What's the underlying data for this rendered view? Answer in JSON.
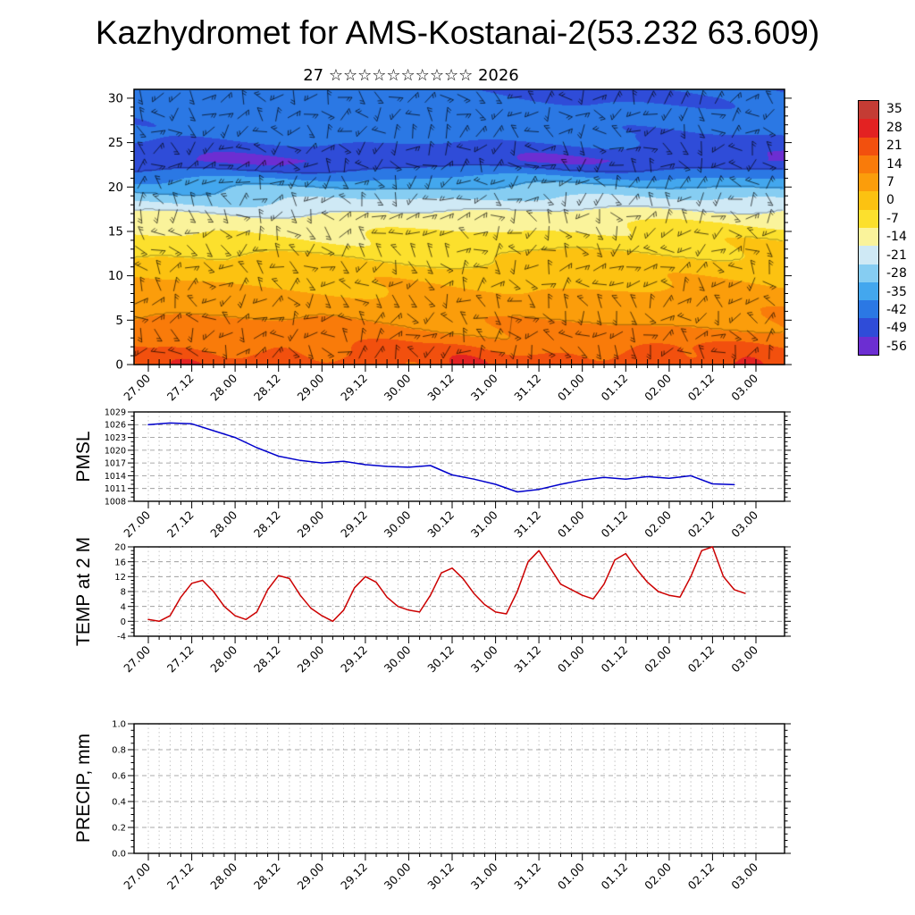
{
  "title": "Kazhydromet for AMS-Kostanai-2(53.232 63.609)",
  "subtitle": "27 ☆☆☆☆☆☆☆☆☆☆ 2026",
  "panel_titles": {
    "pmsl": "PMSL",
    "temp": "TEMP at 2 M",
    "precip": "PRECIP, mm"
  },
  "time_axis": {
    "tick_labels": [
      "27.00",
      "27.12",
      "28.00",
      "28.12",
      "29.00",
      "29.12",
      "30.00",
      "30.12",
      "31.00",
      "31.12",
      "01.00",
      "01.12",
      "02.00",
      "02.12",
      "03.00"
    ],
    "hours_span": 168,
    "major_step_hours": 12,
    "minor_step_hours": 3
  },
  "chart_data": [
    {
      "type": "heatmap",
      "name": "temperature-wind-cross-section",
      "ylim": [
        0,
        31
      ],
      "yticks": [
        0,
        5,
        10,
        15,
        20,
        25,
        30
      ],
      "overlay": "wind-barbs",
      "colorbar_labels": [
        "35",
        "28",
        "21",
        "14",
        "7",
        "0",
        "-7",
        "-14",
        "-21",
        "-28",
        "-35",
        "-42",
        "-49",
        "-56"
      ],
      "colorbar_colors": [
        "#c43c34",
        "#e32222",
        "#f2500e",
        "#f97b0a",
        "#fb9d0b",
        "#fcc211",
        "#fce02d",
        "#faf39b",
        "#cfe9f5",
        "#86cdf2",
        "#43a7ee",
        "#2b78e4",
        "#2f4cd8",
        "#6c2ed2"
      ],
      "base_profile": {
        "z_km": [
          0,
          2,
          4,
          6,
          8,
          10,
          12,
          14,
          15,
          16,
          17,
          18,
          19,
          20,
          21,
          22,
          23,
          24,
          25,
          26,
          28,
          30
        ],
        "temp_c": [
          16,
          12,
          8,
          5,
          2,
          -2,
          -6,
          -11,
          -13.5,
          -16,
          -20,
          -25,
          -30,
          -36,
          -42,
          -50,
          -56,
          -54,
          -50,
          -47,
          -46,
          -48
        ]
      }
    },
    {
      "type": "line",
      "name": "PMSL",
      "color": "#0000cc",
      "ylim": [
        1008,
        1029
      ],
      "yticks": [
        1008,
        1011,
        1014,
        1017,
        1020,
        1023,
        1026,
        1029
      ],
      "ytick_labels": [
        "1008",
        "1011",
        "1014",
        "1017",
        "1020",
        "1023",
        "1026",
        "1029"
      ],
      "y_minor_step": 1,
      "x_hours": [
        0,
        6,
        12,
        18,
        24,
        30,
        36,
        42,
        48,
        54,
        60,
        66,
        72,
        78,
        84,
        90,
        96,
        102,
        108,
        114,
        120,
        126,
        132,
        138,
        144,
        150,
        156,
        162
      ],
      "values": [
        1026,
        1026.4,
        1026.2,
        1024.6,
        1023,
        1020.6,
        1018.6,
        1017.6,
        1017,
        1017.4,
        1016.6,
        1016.2,
        1016,
        1016.4,
        1014.2,
        1013.2,
        1012,
        1010.2,
        1010.8,
        1012,
        1013,
        1013.6,
        1013.2,
        1013.8,
        1013.4,
        1014,
        1012.1,
        1011.9
      ]
    },
    {
      "type": "line",
      "name": "TEMP at 2 M",
      "color": "#cc0000",
      "ylim": [
        -4,
        20
      ],
      "yticks": [
        -4,
        0,
        4,
        8,
        12,
        16,
        20
      ],
      "ytick_labels": [
        "-4",
        "0",
        "4",
        "8",
        "12",
        "16",
        "20"
      ],
      "y_minor_step": 1,
      "x_hours": [
        0,
        3,
        6,
        9,
        12,
        15,
        18,
        21,
        24,
        27,
        30,
        33,
        36,
        39,
        42,
        45,
        48,
        51,
        54,
        57,
        60,
        63,
        66,
        69,
        72,
        75,
        78,
        81,
        84,
        87,
        90,
        93,
        96,
        99,
        102,
        105,
        108,
        111,
        114,
        117,
        120,
        123,
        126,
        129,
        132,
        135,
        138,
        141,
        144,
        147,
        150,
        153,
        156,
        159,
        162,
        165
      ],
      "values": [
        0.5,
        0,
        1.5,
        6.5,
        10.2,
        11,
        8,
        4,
        1.5,
        0.5,
        2.5,
        8.5,
        12.3,
        11.5,
        7,
        3.5,
        1.5,
        0,
        3,
        9,
        12,
        10.5,
        6.5,
        4,
        3,
        2.5,
        7,
        13,
        14.3,
        11.5,
        7.5,
        4.5,
        2.5,
        2,
        8,
        16,
        19,
        14.5,
        10,
        8.5,
        7,
        6,
        10,
        16.5,
        18.2,
        14,
        10.5,
        8,
        7,
        6.5,
        12,
        19,
        20,
        12,
        8.5,
        7.5
      ]
    },
    {
      "type": "line",
      "name": "PRECIP, mm",
      "color": "#000000",
      "ylim": [
        0,
        1
      ],
      "yticks": [
        0,
        0.2,
        0.4,
        0.6,
        0.8,
        1
      ],
      "ytick_labels": [
        "0.0",
        "0.2",
        "0.4",
        "0.6",
        "0.8",
        "1.0"
      ],
      "y_minor_step": 0.05,
      "x_hours": [],
      "values": []
    }
  ]
}
